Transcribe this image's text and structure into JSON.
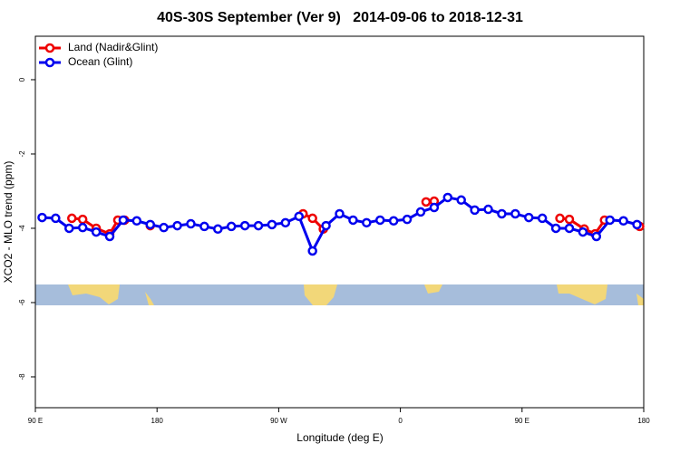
{
  "chart_data": {
    "type": "line",
    "title": "40S-30S September (Ver 9)   2014-09-06 to 2018-12-31",
    "x_label": "Longitude (deg E)",
    "y_label": "XCO2 - MLO trend (ppm)",
    "xlim": [
      90,
      540
    ],
    "ylim": [
      -8.83,
      1.17
    ],
    "xticks": [
      {
        "value": 90,
        "label": "90 E"
      },
      {
        "value": 180,
        "label": "180"
      },
      {
        "value": 270,
        "label": "90 W"
      },
      {
        "value": 360,
        "label": "0"
      },
      {
        "value": 450,
        "label": "90 E"
      },
      {
        "value": 540,
        "label": "180"
      }
    ],
    "yticks": [
      0,
      -2,
      -4,
      -6,
      -8
    ],
    "legend": "top-left",
    "series": [
      {
        "name": "Land (Nadir&Glint)",
        "color": "#ee0000",
        "x": [
          117,
          125,
          135,
          145,
          151,
          156,
          165,
          175,
          230,
          288,
          295,
          303,
          340,
          379,
          385,
          430,
          478,
          485,
          496,
          504,
          511,
          525,
          537
        ],
        "values": [
          -3.73,
          -3.76,
          -4.0,
          -4.15,
          -3.78,
          -3.78,
          null,
          -3.93,
          null,
          -3.61,
          -3.73,
          -4.02,
          null,
          -3.29,
          -3.27,
          null,
          -3.73,
          -3.76,
          -4.02,
          -4.15,
          -3.78,
          null,
          -3.95
        ]
      },
      {
        "name": "Ocean (Glint)",
        "color": "#0000ee",
        "x": [
          95,
          105,
          115,
          125,
          135,
          145,
          155,
          165,
          175,
          185,
          195,
          205,
          215,
          225,
          235,
          245,
          255,
          265,
          275,
          285,
          295,
          305,
          315,
          325,
          335,
          345,
          355,
          365,
          375,
          385,
          395,
          405,
          415,
          425,
          435,
          445,
          455,
          465,
          475,
          485,
          495,
          505,
          515,
          525,
          535
        ],
        "values": [
          -3.71,
          -3.73,
          -4.0,
          -3.98,
          -4.1,
          -4.22,
          -3.78,
          -3.8,
          -3.9,
          -3.98,
          -3.93,
          -3.88,
          -3.95,
          -4.02,
          -3.95,
          -3.93,
          -3.93,
          -3.9,
          -3.85,
          -3.68,
          -4.61,
          -3.93,
          -3.61,
          -3.78,
          -3.85,
          -3.78,
          -3.8,
          -3.76,
          -3.56,
          -3.44,
          -3.17,
          -3.24,
          -3.51,
          -3.49,
          -3.61,
          -3.61,
          -3.71,
          -3.73,
          -4.0,
          -4.0,
          -4.1,
          -4.22,
          -3.78,
          -3.8,
          -3.9
        ]
      }
    ]
  }
}
